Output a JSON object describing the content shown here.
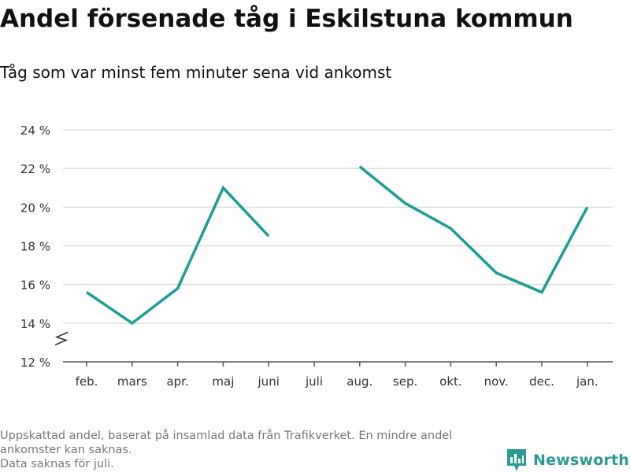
{
  "title": "Andel försenade tåg i Eskilstuna kommun",
  "subtitle": "Tåg som var minst fem minuter sena vid ankomst",
  "footnote": {
    "line1": "Uppskattad andel, baserat på insamlad data från Trafikverket. En mindre andel ankomster kan saknas.",
    "line2": "Data saknas för juli."
  },
  "brand": {
    "name": "Newsworthy",
    "color": "#2a9a93"
  },
  "chart_data": {
    "type": "line",
    "categories": [
      "feb.",
      "mars",
      "apr.",
      "maj",
      "juni",
      "juli",
      "aug.",
      "sep.",
      "okt.",
      "nov.",
      "dec.",
      "jan."
    ],
    "series": [
      {
        "values": [
          15.6,
          14.0,
          15.8,
          21.0,
          18.5,
          null,
          22.1,
          20.2,
          18.9,
          16.6,
          15.6,
          20.0
        ]
      }
    ],
    "ylim": [
      12,
      24
    ],
    "yticks": [
      12,
      14,
      16,
      18,
      20,
      22,
      24
    ],
    "ytick_labels": [
      "12 %",
      "14 %",
      "16 %",
      "18 %",
      "20 %",
      "22 %",
      "24 %"
    ],
    "y_axis_break": true,
    "grid": true,
    "line_color": "#1a9e96",
    "xlabel": "",
    "ylabel": ""
  }
}
